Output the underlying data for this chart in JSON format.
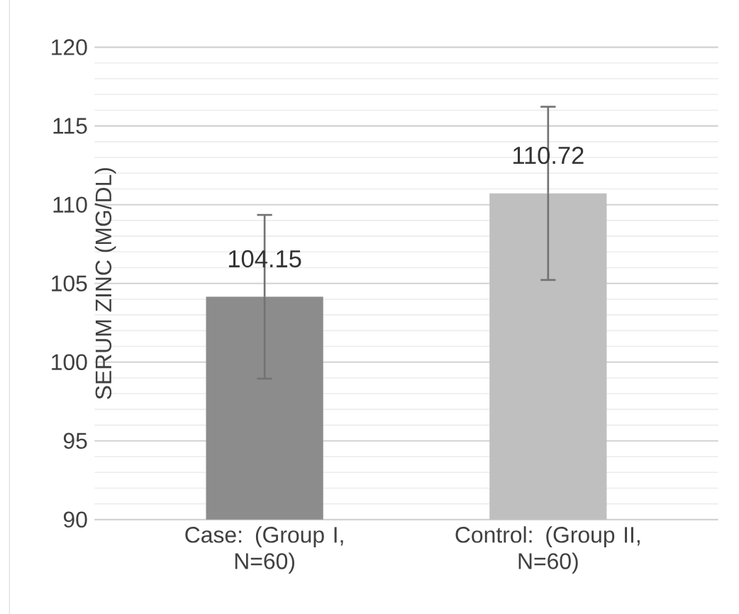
{
  "chart_data": {
    "type": "bar",
    "ylabel": "SERUM ZINC (MG/DL)",
    "categories": [
      "Case: (Group I, N=60)",
      "Control: (Group II, N=60)"
    ],
    "values": [
      104.15,
      110.72
    ],
    "colors": [
      "#8c8c8c",
      "#bfbfbf"
    ],
    "errors": [
      5.2,
      5.5
    ],
    "data_labels": true,
    "ylim": [
      90,
      120
    ],
    "yticks": [
      90,
      95,
      100,
      105,
      110,
      115,
      120
    ],
    "grid": "y"
  }
}
